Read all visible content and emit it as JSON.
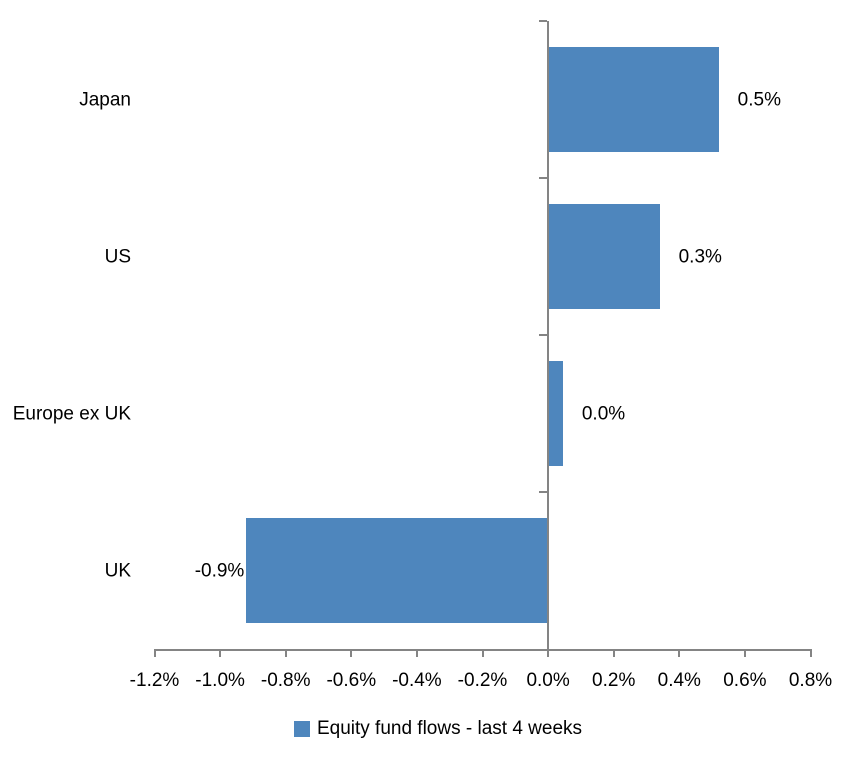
{
  "chart_data": {
    "type": "bar",
    "orientation": "horizontal",
    "title": "",
    "legend": "Equity fund flows - last 4 weeks",
    "legend_position": "bottom",
    "categories": [
      "Japan",
      "US",
      "Europe ex UK",
      "UK"
    ],
    "series": [
      {
        "name": "Equity fund flows - last 4 weeks",
        "values": [
          0.5,
          0.3,
          0.0,
          -0.9
        ],
        "values_precise": [
          0.52,
          0.34,
          0.045,
          -0.92
        ],
        "data_labels": [
          "0.5%",
          "0.3%",
          "0.0%",
          "-0.9%"
        ]
      }
    ],
    "xlabel": "",
    "ylabel": "",
    "xlim": [
      -1.2,
      0.8
    ],
    "x_ticks": [
      -1.2,
      -1.0,
      -0.8,
      -0.6,
      -0.4,
      -0.2,
      0.0,
      0.2,
      0.4,
      0.6,
      0.8
    ],
    "x_tick_labels": [
      "-1.2%",
      "-1.0%",
      "-0.8%",
      "-0.6%",
      "-0.4%",
      "-0.2%",
      "0.0%",
      "0.2%",
      "0.4%",
      "0.6%",
      "0.8%"
    ],
    "grid": false,
    "colors": {
      "bar": "#4E86BD",
      "axis": "#848484",
      "text": "#000000",
      "background": "#FFFFFF"
    }
  }
}
